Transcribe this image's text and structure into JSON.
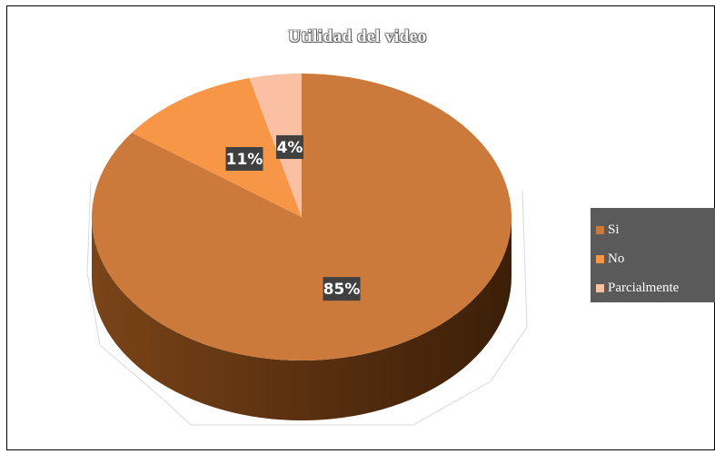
{
  "chart_data": {
    "type": "pie",
    "title": "Utilidad  del video",
    "categories": [
      "Si",
      "No",
      "Parcialmente"
    ],
    "values": [
      85,
      11,
      4
    ],
    "data_labels": [
      "85%",
      "11%",
      "4%"
    ],
    "colors": [
      "#cc7a3c",
      "#f79646",
      "#fac0a3"
    ],
    "legend_position": "right",
    "style": "3d-tilted"
  }
}
